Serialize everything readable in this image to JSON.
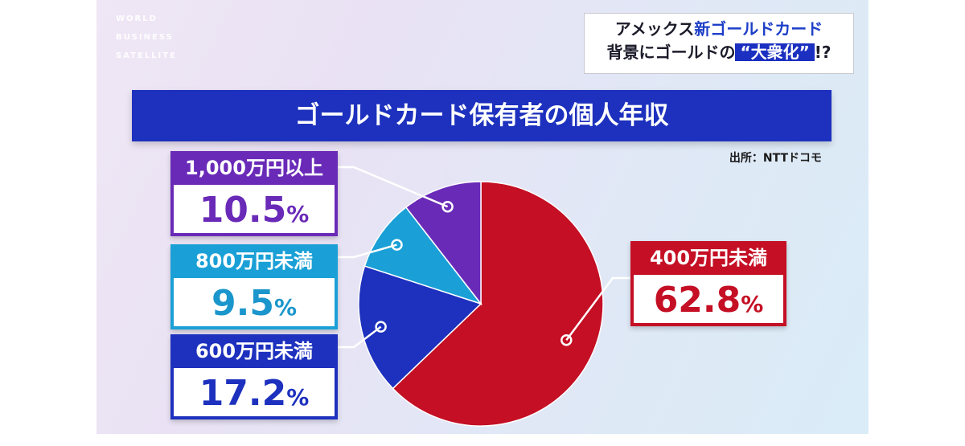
{
  "broadcast": {
    "logo_lines": [
      "WORLD",
      "BUSINESS",
      "SATELLITE"
    ]
  },
  "headline": {
    "line1_prefix": "アメックス",
    "line1_highlight": "新ゴールドカード",
    "line2_prefix": "背景にゴールドの",
    "line2_quote": "“大衆化”",
    "line2_suffix": "!?"
  },
  "source": "出所：NTTドコモ",
  "colors": {
    "purple": "#6a2ab8",
    "cyan": "#1aa0d6",
    "blue": "#1d31be",
    "red": "#c40f24"
  },
  "chart_data": {
    "type": "pie",
    "title": "ゴールドカード保有者の個人年収",
    "slices": [
      {
        "label": "400万円未満",
        "value": 62.8,
        "display": "62.8",
        "unit": "%",
        "color": "#c40f24"
      },
      {
        "label": "600万円未満",
        "value": 17.2,
        "display": "17.2",
        "unit": "%",
        "color": "#1d31be"
      },
      {
        "label": "800万円未満",
        "value": 9.5,
        "display": "9.5",
        "unit": "%",
        "color": "#1aa0d6"
      },
      {
        "label": "1,000万円以上",
        "value": 10.5,
        "display": "10.5",
        "unit": "%",
        "color": "#6a2ab8"
      }
    ]
  }
}
